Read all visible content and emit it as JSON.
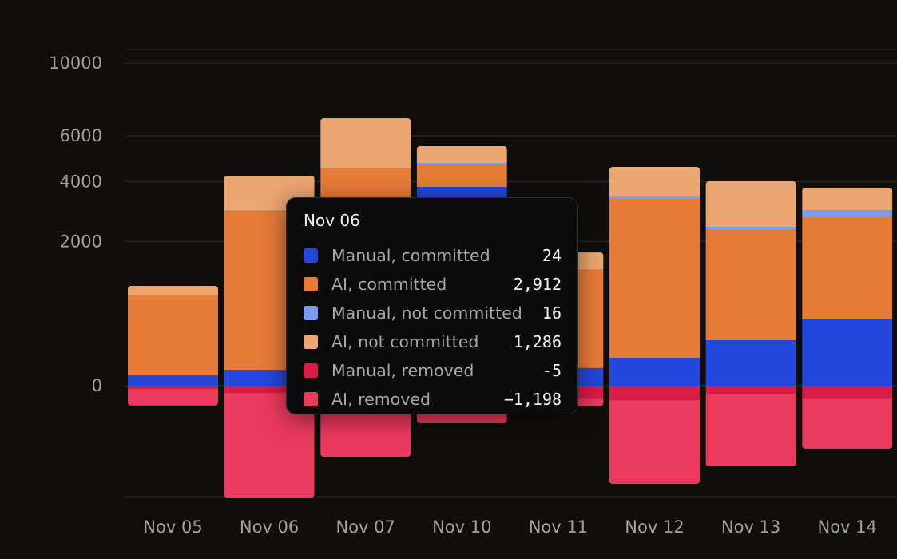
{
  "chart_data": {
    "type": "bar",
    "stacked": true,
    "y_scale": "sqrt",
    "ylim": [
      -1203,
      10860
    ],
    "y_ticks": [
      0,
      2000,
      4000,
      6000,
      10000
    ],
    "y_tick_labels": [
      "0",
      "2000",
      "4000",
      "6000",
      "10000"
    ],
    "grid": true,
    "categories": [
      "Nov 05",
      "Nov 06",
      "Nov 07",
      "Nov 10",
      "Nov 11",
      "Nov 12",
      "Nov 13",
      "Nov 14"
    ],
    "series": [
      {
        "name": "Manual, committed",
        "color": "#2447dc",
        "values": [
          10,
          24,
          20,
          3798,
          30,
          75,
          199,
          432
        ]
      },
      {
        "name": "AI, committed",
        "color": "#e77b38",
        "values": [
          786,
          2912,
          4513,
          937,
          1258,
          3280,
          2131,
          2296
        ]
      },
      {
        "name": "Manual, not committed",
        "color": "#769df2",
        "values": [
          0,
          16,
          0,
          34,
          10,
          60,
          96,
          238
        ]
      },
      {
        "name": "AI, not committed",
        "color": "#eba672",
        "values": [
          161,
          1286,
          2342,
          746,
          410,
          1185,
          1589,
          802
        ]
      },
      {
        "name": "Manual, removed",
        "color": "#d81b47",
        "values": [
          -1,
          -5,
          -8,
          -10,
          -16,
          -20,
          -6,
          -16
        ]
      },
      {
        "name": "AI, removed",
        "color": "#ec3a5c",
        "values": [
          -37,
          -1198,
          -477,
          -125,
          -25,
          -907,
          -619,
          -366
        ]
      }
    ]
  },
  "tooltip": {
    "title": "Nov 06",
    "rows": [
      {
        "label": "Manual, committed",
        "value": "24",
        "color": "#2447dc"
      },
      {
        "label": "AI, committed",
        "value": "2,912",
        "color": "#e77b38"
      },
      {
        "label": "Manual, not committed",
        "value": "16",
        "color": "#769df2"
      },
      {
        "label": "AI, not committed",
        "value": "1,286",
        "color": "#eba672"
      },
      {
        "label": "Manual, removed",
        "value": "-5",
        "color": "#d81b47"
      },
      {
        "label": "AI, removed",
        "value": "−1,198",
        "color": "#ec3a5c"
      }
    ]
  }
}
